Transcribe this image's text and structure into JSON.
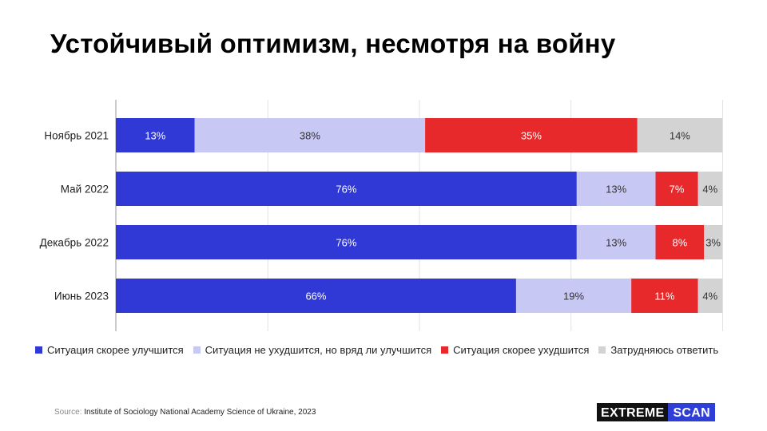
{
  "title": "Устойчивый оптимизм, несмотря на войну",
  "chart_data": {
    "type": "bar",
    "orientation": "horizontal",
    "stacked": true,
    "categories": [
      "Ноябрь 2021",
      "Май 2022",
      "Декабрь 2022",
      "Июнь 2023"
    ],
    "series": [
      {
        "name": "Ситуация скорее улучшится",
        "color": "#3038d6",
        "label_color": "#ffffff",
        "values": [
          13,
          76,
          76,
          66
        ]
      },
      {
        "name": "Ситуация не ухудшится, но вряд ли улучшится",
        "color": "#c8c8f4",
        "label_color": "#333333",
        "values": [
          38,
          13,
          13,
          19
        ]
      },
      {
        "name": "Ситуация скорее ухудшится",
        "color": "#e8292b",
        "label_color": "#ffffff",
        "values": [
          35,
          7,
          8,
          11
        ]
      },
      {
        "name": "Затрудняюсь ответить",
        "color": "#d3d3d3",
        "label_color": "#333333",
        "values": [
          14,
          4,
          3,
          4
        ]
      }
    ],
    "value_suffix": "%",
    "xlim": [
      0,
      100
    ],
    "grid": true,
    "legend_position": "bottom"
  },
  "source": {
    "prefix": "Source:",
    "text": "Institute of Sociology National Academy Science of Ukraine, 2023"
  },
  "logo": {
    "word1": "EXTREME",
    "word2": "SCAN"
  }
}
